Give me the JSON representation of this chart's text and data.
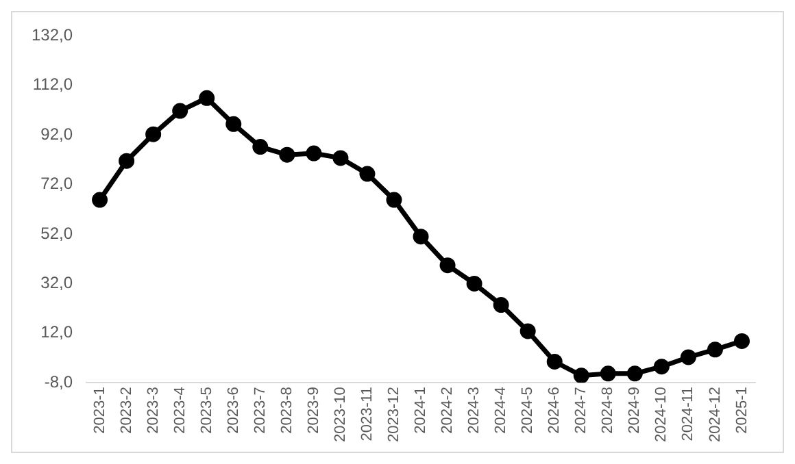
{
  "chart_data": {
    "type": "line",
    "categories": [
      "2023-1",
      "2023-2",
      "2023-3",
      "2023-4",
      "2023-5",
      "2023-6",
      "2023-7",
      "2023-8",
      "2023-9",
      "2023-10",
      "2023-11",
      "2023-12",
      "2024-1",
      "2024-2",
      "2024-3",
      "2024-4",
      "2024-5",
      "2024-6",
      "2024-7",
      "2024-8",
      "2024-9",
      "2024-10",
      "2024-11",
      "2024-12",
      "2025-1"
    ],
    "series": [
      {
        "color": "#000000",
        "values": [
          65.8,
          81.5,
          92.3,
          101.7,
          106.9,
          96.4,
          87.2,
          84.0,
          84.6,
          82.7,
          76.3,
          65.8,
          51.0,
          39.4,
          32.0,
          23.4,
          12.8,
          0.5,
          -5.1,
          -4.3,
          -4.3,
          -1.5,
          2.3,
          5.4,
          8.8
        ]
      }
    ],
    "ylim": [
      -8,
      132
    ],
    "yticks": [
      {
        "value": -8,
        "label": "-8,0"
      },
      {
        "value": 12,
        "label": "12,0"
      },
      {
        "value": 32,
        "label": "32,0"
      },
      {
        "value": 52,
        "label": "52,0"
      },
      {
        "value": 72,
        "label": "72,0"
      },
      {
        "value": 92,
        "label": "92,0"
      },
      {
        "value": 112,
        "label": "112,0"
      },
      {
        "value": 132,
        "label": "132,0"
      }
    ],
    "grid": false,
    "legend": false,
    "marker": "circle",
    "line_style": "solid"
  }
}
